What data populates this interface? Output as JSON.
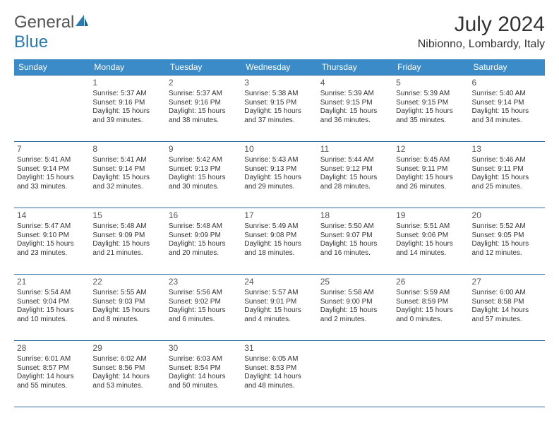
{
  "brand": {
    "general": "General",
    "blue": "Blue"
  },
  "header": {
    "month_title": "July 2024",
    "location": "Nibionno, Lombardy, Italy"
  },
  "colors": {
    "header_bg": "#3b8bc8",
    "header_text": "#ffffff",
    "border": "#2a6aa0",
    "body_text": "#333333",
    "logo_blue": "#2a7ab0"
  },
  "dayNames": [
    "Sunday",
    "Monday",
    "Tuesday",
    "Wednesday",
    "Thursday",
    "Friday",
    "Saturday"
  ],
  "weeks": [
    [
      null,
      {
        "n": 1,
        "sr": "Sunrise: 5:37 AM",
        "ss": "Sunset: 9:16 PM",
        "dl": "Daylight: 15 hours and 39 minutes."
      },
      {
        "n": 2,
        "sr": "Sunrise: 5:37 AM",
        "ss": "Sunset: 9:16 PM",
        "dl": "Daylight: 15 hours and 38 minutes."
      },
      {
        "n": 3,
        "sr": "Sunrise: 5:38 AM",
        "ss": "Sunset: 9:15 PM",
        "dl": "Daylight: 15 hours and 37 minutes."
      },
      {
        "n": 4,
        "sr": "Sunrise: 5:39 AM",
        "ss": "Sunset: 9:15 PM",
        "dl": "Daylight: 15 hours and 36 minutes."
      },
      {
        "n": 5,
        "sr": "Sunrise: 5:39 AM",
        "ss": "Sunset: 9:15 PM",
        "dl": "Daylight: 15 hours and 35 minutes."
      },
      {
        "n": 6,
        "sr": "Sunrise: 5:40 AM",
        "ss": "Sunset: 9:14 PM",
        "dl": "Daylight: 15 hours and 34 minutes."
      }
    ],
    [
      {
        "n": 7,
        "sr": "Sunrise: 5:41 AM",
        "ss": "Sunset: 9:14 PM",
        "dl": "Daylight: 15 hours and 33 minutes."
      },
      {
        "n": 8,
        "sr": "Sunrise: 5:41 AM",
        "ss": "Sunset: 9:14 PM",
        "dl": "Daylight: 15 hours and 32 minutes."
      },
      {
        "n": 9,
        "sr": "Sunrise: 5:42 AM",
        "ss": "Sunset: 9:13 PM",
        "dl": "Daylight: 15 hours and 30 minutes."
      },
      {
        "n": 10,
        "sr": "Sunrise: 5:43 AM",
        "ss": "Sunset: 9:13 PM",
        "dl": "Daylight: 15 hours and 29 minutes."
      },
      {
        "n": 11,
        "sr": "Sunrise: 5:44 AM",
        "ss": "Sunset: 9:12 PM",
        "dl": "Daylight: 15 hours and 28 minutes."
      },
      {
        "n": 12,
        "sr": "Sunrise: 5:45 AM",
        "ss": "Sunset: 9:11 PM",
        "dl": "Daylight: 15 hours and 26 minutes."
      },
      {
        "n": 13,
        "sr": "Sunrise: 5:46 AM",
        "ss": "Sunset: 9:11 PM",
        "dl": "Daylight: 15 hours and 25 minutes."
      }
    ],
    [
      {
        "n": 14,
        "sr": "Sunrise: 5:47 AM",
        "ss": "Sunset: 9:10 PM",
        "dl": "Daylight: 15 hours and 23 minutes."
      },
      {
        "n": 15,
        "sr": "Sunrise: 5:48 AM",
        "ss": "Sunset: 9:09 PM",
        "dl": "Daylight: 15 hours and 21 minutes."
      },
      {
        "n": 16,
        "sr": "Sunrise: 5:48 AM",
        "ss": "Sunset: 9:09 PM",
        "dl": "Daylight: 15 hours and 20 minutes."
      },
      {
        "n": 17,
        "sr": "Sunrise: 5:49 AM",
        "ss": "Sunset: 9:08 PM",
        "dl": "Daylight: 15 hours and 18 minutes."
      },
      {
        "n": 18,
        "sr": "Sunrise: 5:50 AM",
        "ss": "Sunset: 9:07 PM",
        "dl": "Daylight: 15 hours and 16 minutes."
      },
      {
        "n": 19,
        "sr": "Sunrise: 5:51 AM",
        "ss": "Sunset: 9:06 PM",
        "dl": "Daylight: 15 hours and 14 minutes."
      },
      {
        "n": 20,
        "sr": "Sunrise: 5:52 AM",
        "ss": "Sunset: 9:05 PM",
        "dl": "Daylight: 15 hours and 12 minutes."
      }
    ],
    [
      {
        "n": 21,
        "sr": "Sunrise: 5:54 AM",
        "ss": "Sunset: 9:04 PM",
        "dl": "Daylight: 15 hours and 10 minutes."
      },
      {
        "n": 22,
        "sr": "Sunrise: 5:55 AM",
        "ss": "Sunset: 9:03 PM",
        "dl": "Daylight: 15 hours and 8 minutes."
      },
      {
        "n": 23,
        "sr": "Sunrise: 5:56 AM",
        "ss": "Sunset: 9:02 PM",
        "dl": "Daylight: 15 hours and 6 minutes."
      },
      {
        "n": 24,
        "sr": "Sunrise: 5:57 AM",
        "ss": "Sunset: 9:01 PM",
        "dl": "Daylight: 15 hours and 4 minutes."
      },
      {
        "n": 25,
        "sr": "Sunrise: 5:58 AM",
        "ss": "Sunset: 9:00 PM",
        "dl": "Daylight: 15 hours and 2 minutes."
      },
      {
        "n": 26,
        "sr": "Sunrise: 5:59 AM",
        "ss": "Sunset: 8:59 PM",
        "dl": "Daylight: 15 hours and 0 minutes."
      },
      {
        "n": 27,
        "sr": "Sunrise: 6:00 AM",
        "ss": "Sunset: 8:58 PM",
        "dl": "Daylight: 14 hours and 57 minutes."
      }
    ],
    [
      {
        "n": 28,
        "sr": "Sunrise: 6:01 AM",
        "ss": "Sunset: 8:57 PM",
        "dl": "Daylight: 14 hours and 55 minutes."
      },
      {
        "n": 29,
        "sr": "Sunrise: 6:02 AM",
        "ss": "Sunset: 8:56 PM",
        "dl": "Daylight: 14 hours and 53 minutes."
      },
      {
        "n": 30,
        "sr": "Sunrise: 6:03 AM",
        "ss": "Sunset: 8:54 PM",
        "dl": "Daylight: 14 hours and 50 minutes."
      },
      {
        "n": 31,
        "sr": "Sunrise: 6:05 AM",
        "ss": "Sunset: 8:53 PM",
        "dl": "Daylight: 14 hours and 48 minutes."
      },
      null,
      null,
      null
    ]
  ]
}
